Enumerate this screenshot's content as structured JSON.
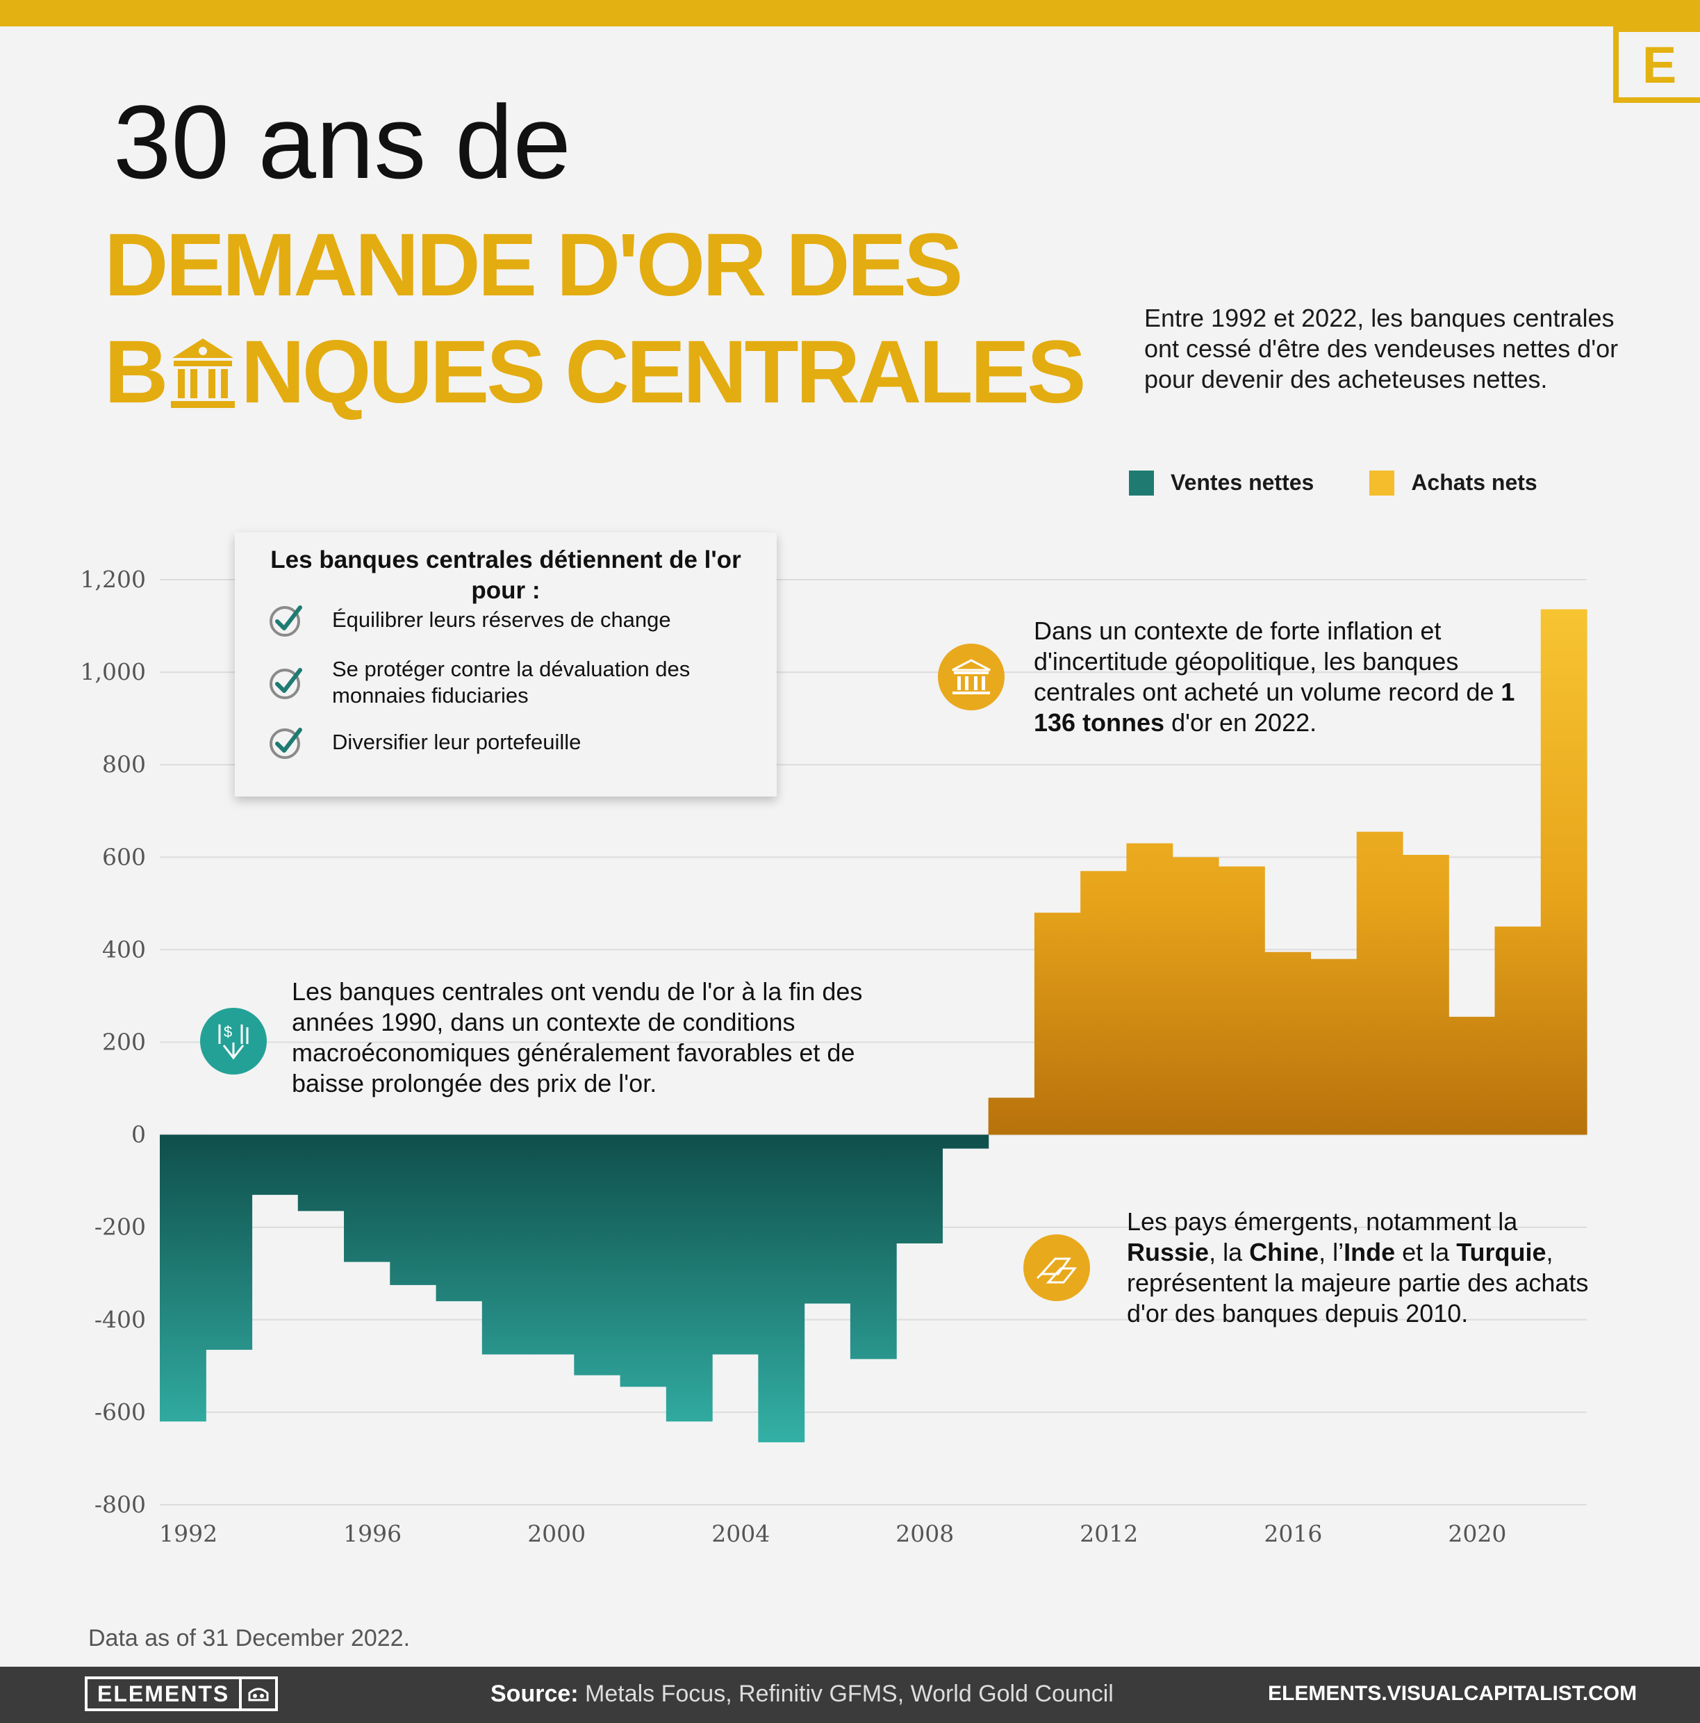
{
  "brand": {
    "logo_letter": "E"
  },
  "header": {
    "title_line1": "30 ans de",
    "title_line2": "DEMANDE D'OR DES",
    "title_line3_a": "B",
    "title_line3_b": "NQUES CENTRALES",
    "intro": "Entre 1992 et 2022, les banques centrales ont cessé d'être des vendeuses nettes d'or pour devenir des acheteuses nettes."
  },
  "legend": {
    "sales_label": "Ventes nettes",
    "purchases_label": "Achats nets"
  },
  "callout": {
    "heading": "Les banques centrales détiennent de l'or pour :",
    "items": [
      "Équilibrer leurs réserves de change",
      "Se protéger contre la dévaluation des monnaies fiduciaries",
      "Diversifier leur portefeuille"
    ]
  },
  "notes": {
    "record": {
      "pre": "Dans un contexte de forte inflation et d'incertitude géopolitique, les banques centrales ont acheté un volume record de ",
      "bold": "1 136 tonnes",
      "post": " d'or en 2022."
    },
    "nineties": "Les banques centrales ont vendu de l'or à la fin des années 1990, dans un contexte de conditions macroéconomiques généralement favorables et de baisse prolongée des prix de l'or.",
    "emerging": {
      "p1": "Les pays émergents, notamment la ",
      "c1": "Russie",
      "p2": ", la ",
      "c2": "Chine",
      "p3": ", l’",
      "c3": "Inde",
      "p4": " et la ",
      "c4": "Turquie",
      "p5": ", représentent la majeure partie des achats d'or des banques depuis 2010."
    }
  },
  "footnote": "Data as of 31 December 2022.",
  "footer": {
    "brand_label": "ELEMENTS",
    "source_label": "Source:",
    "source_text": " Metals Focus, Refinitiv GFMS, World Gold Council",
    "site": "ELEMENTS.VISUALCAPITALIST.COM"
  },
  "chart_data": {
    "type": "bar",
    "x": [
      1992,
      1993,
      1994,
      1995,
      1996,
      1997,
      1998,
      1999,
      2000,
      2001,
      2002,
      2003,
      2004,
      2005,
      2006,
      2007,
      2008,
      2009,
      2010,
      2011,
      2012,
      2013,
      2014,
      2015,
      2016,
      2017,
      2018,
      2019,
      2020,
      2021,
      2022
    ],
    "series": [
      {
        "name": "Ventes nettes",
        "values": [
          -620,
          -465,
          -130,
          -165,
          -275,
          -325,
          -360,
          -475,
          -475,
          -520,
          -545,
          -620,
          -475,
          -665,
          -365,
          -485,
          -235,
          -30,
          0,
          0,
          0,
          0,
          0,
          0,
          0,
          0,
          0,
          0,
          0,
          0,
          0
        ]
      },
      {
        "name": "Achats nets",
        "values": [
          0,
          0,
          0,
          0,
          0,
          0,
          0,
          0,
          0,
          0,
          0,
          0,
          0,
          0,
          0,
          0,
          0,
          0,
          80,
          480,
          570,
          630,
          600,
          580,
          395,
          380,
          655,
          605,
          255,
          450,
          1136
        ]
      }
    ],
    "ylim": [
      -800,
      1200
    ],
    "y_ticks": [
      1200,
      1000,
      800,
      600,
      400,
      200,
      0,
      -200,
      -400,
      -600,
      -800
    ],
    "y_tick_labels": [
      "1,200",
      "1,000",
      "800",
      "600",
      "400",
      "200",
      "0",
      "-200",
      "-400",
      "-600",
      "-800"
    ],
    "x_ticks": [
      1992,
      1996,
      2000,
      2004,
      2008,
      2012,
      2016,
      2020
    ],
    "colors": {
      "sales_top": "#0f4e4a",
      "sales_bottom": "#33b0a5",
      "purchases_top": "#f7c432",
      "purchases_bottom": "#b8720c"
    },
    "grid": true,
    "legend_position": "top-right"
  }
}
